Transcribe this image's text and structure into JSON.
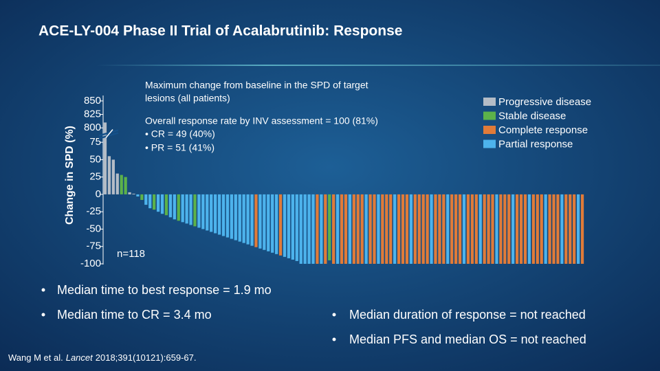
{
  "slide": {
    "title": "ACE-LY-004 Phase II Trial of Acalabrutinib: Response",
    "bullets_left": [
      "Median time to best response = 1.9 mo",
      "Median time to CR = 3.4 mo"
    ],
    "bullets_right": [
      "Median duration of response = not reached",
      "Median PFS and median OS = not reached"
    ],
    "citation": {
      "authors": "Wang M et al.",
      "journal": "Lancet",
      "rest": "2018;391(10121):659-67."
    }
  },
  "chart_data": {
    "type": "bar",
    "ylabel": "Change in SPD (%)",
    "notes": [
      "Maximum change from baseline in the SPD of target",
      "lesions (all patients)"
    ],
    "notes2": [
      "Overall response rate by INV assessment = 100 (81%)",
      "• CR = 49 (40%)",
      "• PR = 51 (41%)"
    ],
    "annotation": "n=118",
    "legend": [
      {
        "name": "Progressive disease",
        "color": "#b4bcc6"
      },
      {
        "name": "Stable disease",
        "color": "#5cb24a"
      },
      {
        "name": "Complete response",
        "color": "#e07b39"
      },
      {
        "name": "Partial response",
        "color": "#4db3ec"
      }
    ],
    "y_segments": [
      {
        "ylim": [
          -100,
          85
        ]
      },
      {
        "ylim": [
          790,
          855
        ]
      }
    ],
    "axis_break": true,
    "yticks": [
      -100,
      -75,
      -50,
      -25,
      0,
      25,
      50,
      75,
      800,
      825,
      850
    ],
    "values": [
      810,
      55,
      50,
      30,
      28,
      25,
      3,
      1,
      -3,
      -8,
      -15,
      -20,
      -22,
      -25,
      -28,
      -30,
      -33,
      -36,
      -38,
      -40,
      -42,
      -44,
      -46,
      -48,
      -50,
      -52,
      -54,
      -56,
      -58,
      -60,
      -62,
      -64,
      -66,
      -68,
      -70,
      -72,
      -74,
      -76,
      -78,
      -80,
      -82,
      -84,
      -86,
      -88,
      -90,
      -92,
      -94,
      -96,
      -100,
      -100,
      -100,
      -100,
      -100,
      -100,
      -100,
      -95,
      -100,
      -100,
      -100,
      -100,
      -100,
      -100,
      -100,
      -100,
      -100,
      -100,
      -100,
      -100,
      -100,
      -100,
      -100,
      -100,
      -100,
      -100,
      -100,
      -100,
      -100,
      -100,
      -100,
      -100,
      -100,
      -100,
      -100,
      -100,
      -100,
      -100,
      -100,
      -100,
      -100,
      -100,
      -100,
      -100,
      -100,
      -100,
      -100,
      -100,
      -100,
      -100,
      -100,
      -100,
      -100,
      -100,
      -100,
      -100,
      -100,
      -100,
      -100,
      -100,
      -100,
      -100,
      -100,
      -100,
      -100,
      -100,
      -100,
      -100,
      -100,
      -100
    ],
    "colors": [
      "#b4bcc6",
      "#b4bcc6",
      "#b4bcc6",
      "#b4bcc6",
      "#5cb24a",
      "#5cb24a",
      "#b4bcc6",
      "#b4bcc6",
      "#4db3ec",
      "#5cb24a",
      "#4db3ec",
      "#4db3ec",
      "#5cb24a",
      "#4db3ec",
      "#4db3ec",
      "#5cb24a",
      "#4db3ec",
      "#4db3ec",
      "#5cb24a",
      "#4db3ec",
      "#4db3ec",
      "#4db3ec",
      "#5cb24a",
      "#4db3ec",
      "#4db3ec",
      "#4db3ec",
      "#4db3ec",
      "#4db3ec",
      "#4db3ec",
      "#4db3ec",
      "#4db3ec",
      "#4db3ec",
      "#4db3ec",
      "#4db3ec",
      "#4db3ec",
      "#4db3ec",
      "#4db3ec",
      "#e07b39",
      "#4db3ec",
      "#4db3ec",
      "#4db3ec",
      "#4db3ec",
      "#4db3ec",
      "#e07b39",
      "#4db3ec",
      "#4db3ec",
      "#4db3ec",
      "#4db3ec",
      "#4db3ec",
      "#4db3ec",
      "#4db3ec",
      "#4db3ec",
      "#e07b39",
      "#4db3ec",
      "#e07b39",
      "#5cb24a",
      "#e07b39",
      "#4db3ec",
      "#e07b39",
      "#e07b39",
      "#4db3ec",
      "#e07b39",
      "#e07b39",
      "#e07b39",
      "#4db3ec",
      "#e07b39",
      "#e07b39",
      "#4db3ec",
      "#e07b39",
      "#e07b39",
      "#e07b39",
      "#4db3ec",
      "#e07b39",
      "#e07b39",
      "#e07b39",
      "#4db3ec",
      "#e07b39",
      "#e07b39",
      "#e07b39",
      "#e07b39",
      "#4db3ec",
      "#e07b39",
      "#e07b39",
      "#e07b39",
      "#4db3ec",
      "#e07b39",
      "#e07b39",
      "#e07b39",
      "#4db3ec",
      "#e07b39",
      "#e07b39",
      "#e07b39",
      "#4db3ec",
      "#e07b39",
      "#e07b39",
      "#e07b39",
      "#4db3ec",
      "#e07b39",
      "#e07b39",
      "#e07b39",
      "#4db3ec",
      "#e07b39",
      "#e07b39",
      "#e07b39",
      "#4db3ec",
      "#e07b39",
      "#e07b39",
      "#e07b39",
      "#4db3ec",
      "#e07b39",
      "#e07b39",
      "#e07b39",
      "#4db3ec",
      "#e07b39",
      "#e07b39",
      "#e07b39",
      "#4db3ec",
      "#e07b39"
    ]
  }
}
